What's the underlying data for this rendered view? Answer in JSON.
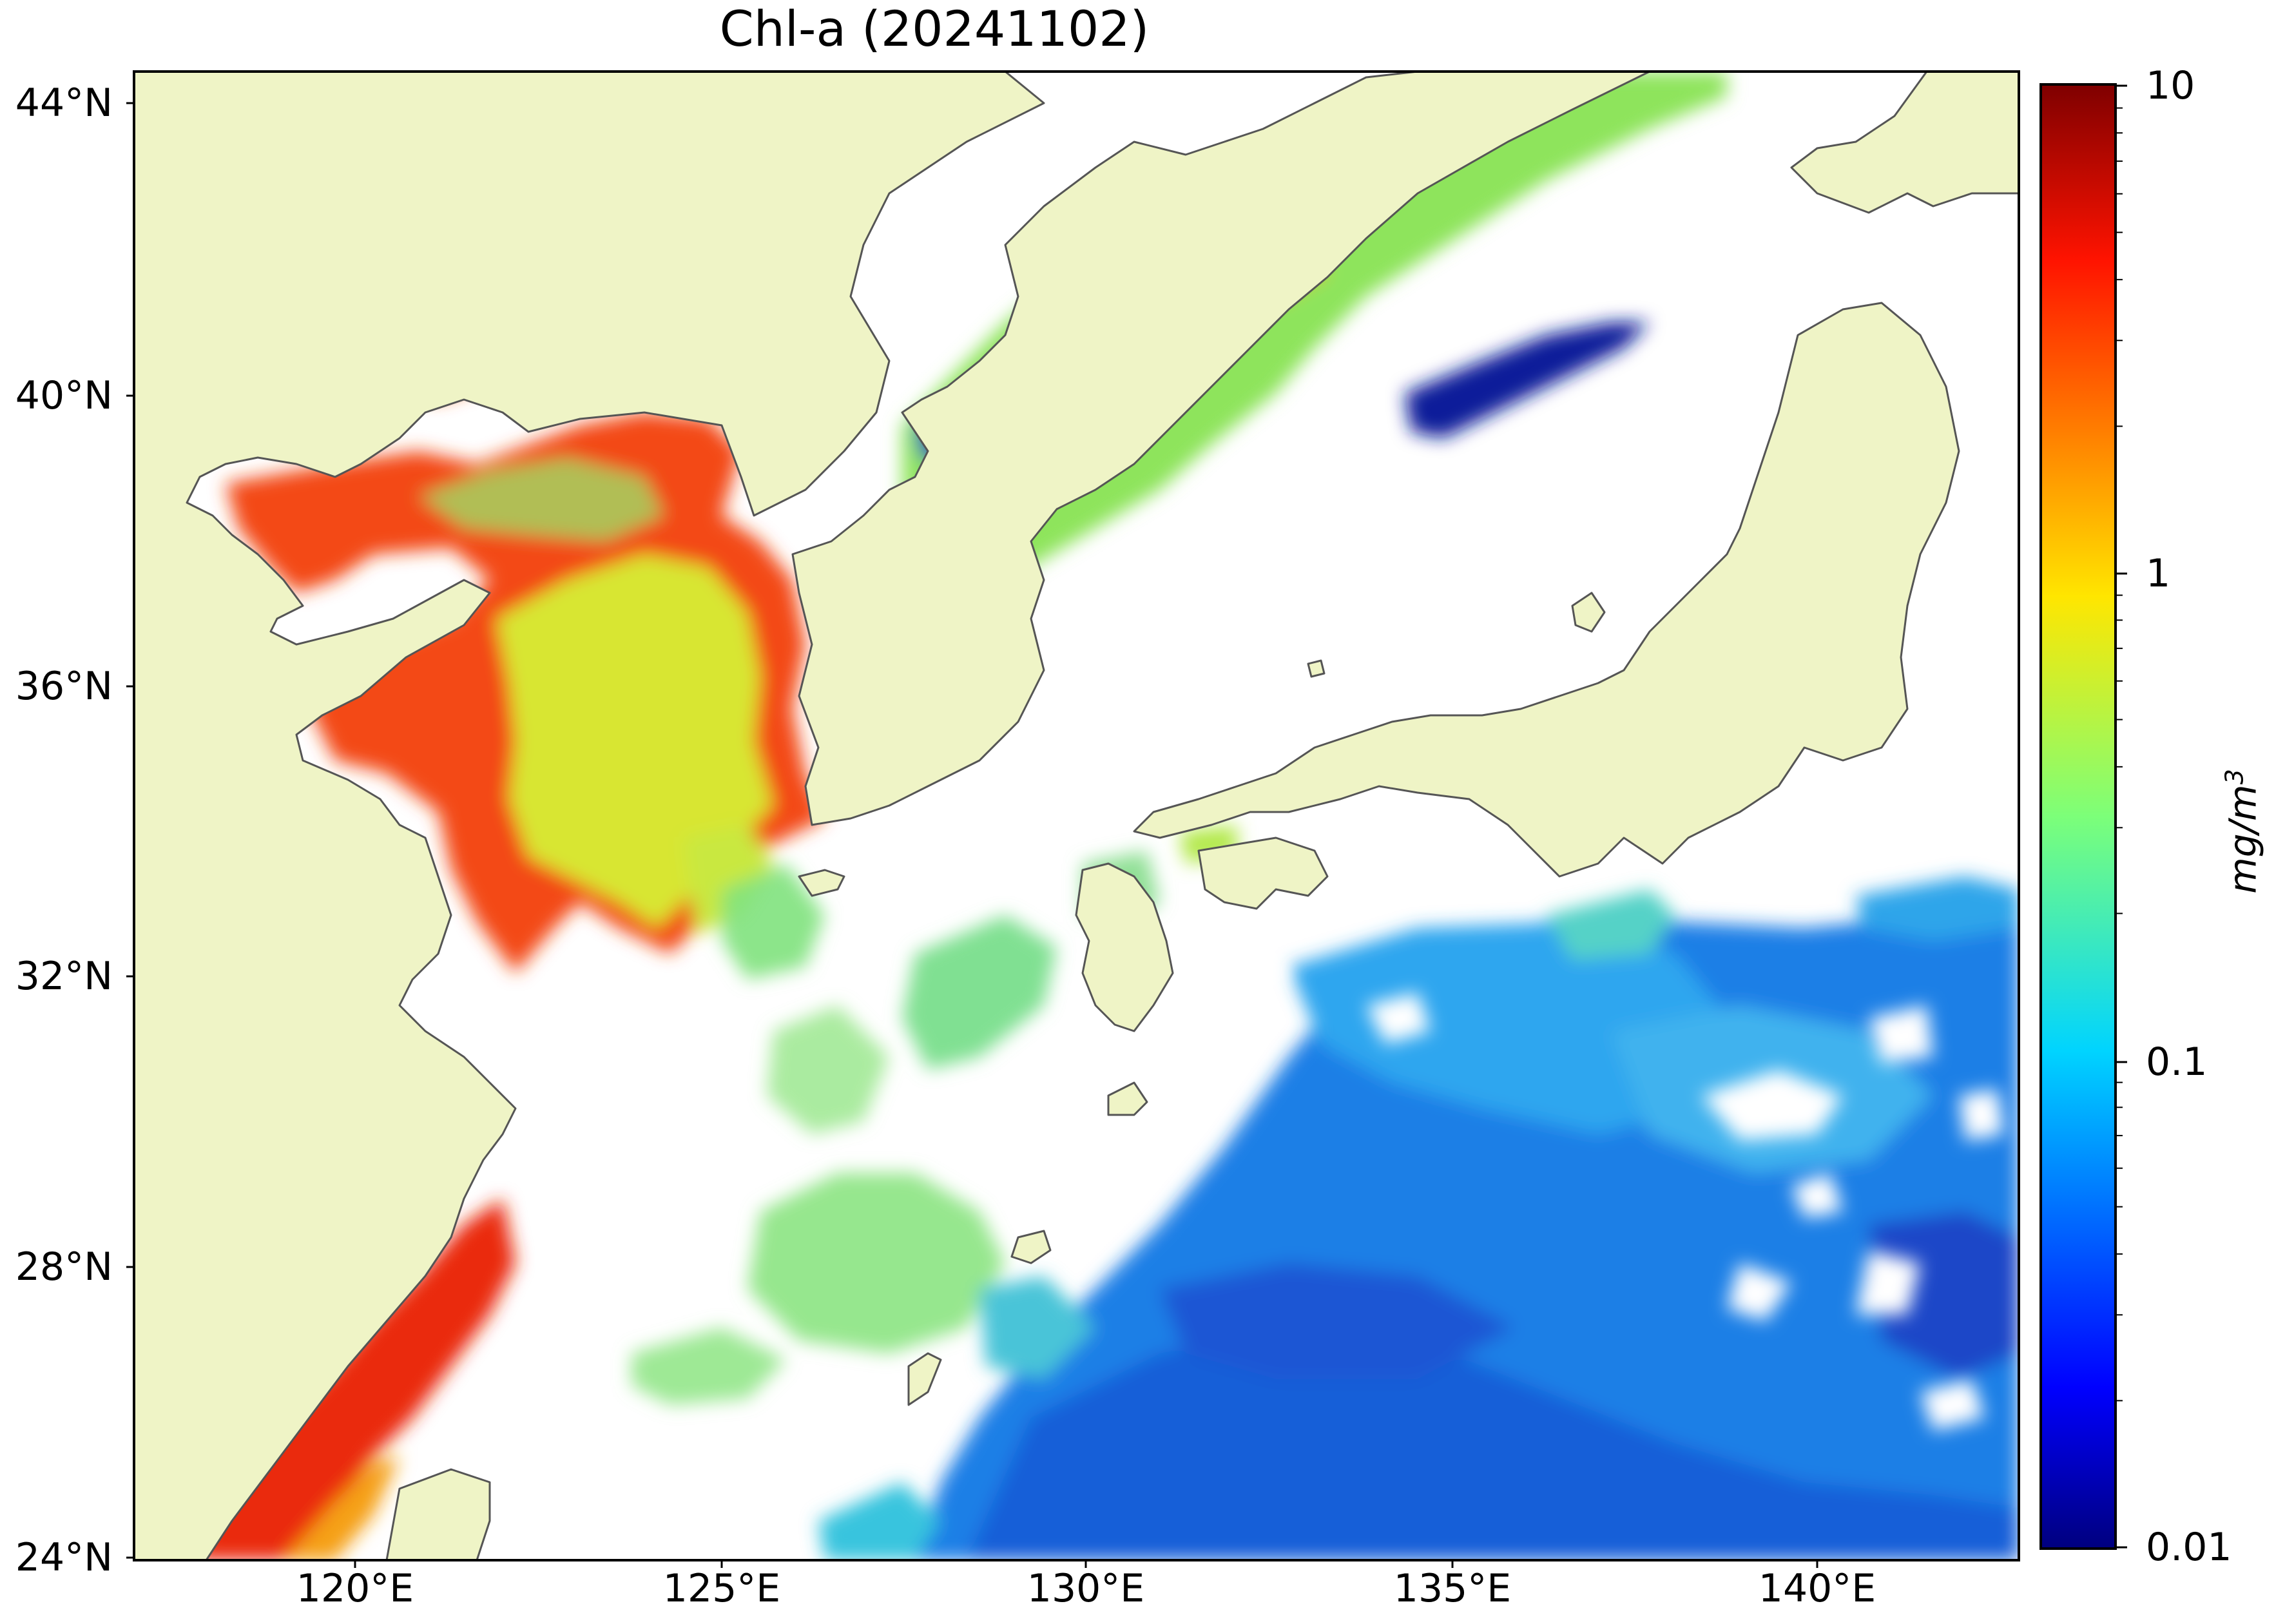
{
  "title": "Chl-a (20241102)",
  "map": {
    "region": "East Asian marginal seas",
    "lon_range": [
      117,
      143
    ],
    "lat_range": [
      24,
      44.5
    ],
    "land_color": "#eff4c6",
    "no_data_color": "#ffffff",
    "coastline_color": "#555555",
    "colormap": "jet",
    "xticks": [
      "120°E",
      "125°E",
      "130°E",
      "135°E",
      "140°E"
    ],
    "yticks": [
      "44°N",
      "40°N",
      "36°N",
      "32°N",
      "28°N",
      "24°N"
    ]
  },
  "colorbar": {
    "scale": "log",
    "range": [
      0.01,
      10
    ],
    "ticks": [
      "10",
      "1",
      "0.1",
      "0.01"
    ],
    "unit_base": "mg/m",
    "unit_exp": "3"
  }
}
